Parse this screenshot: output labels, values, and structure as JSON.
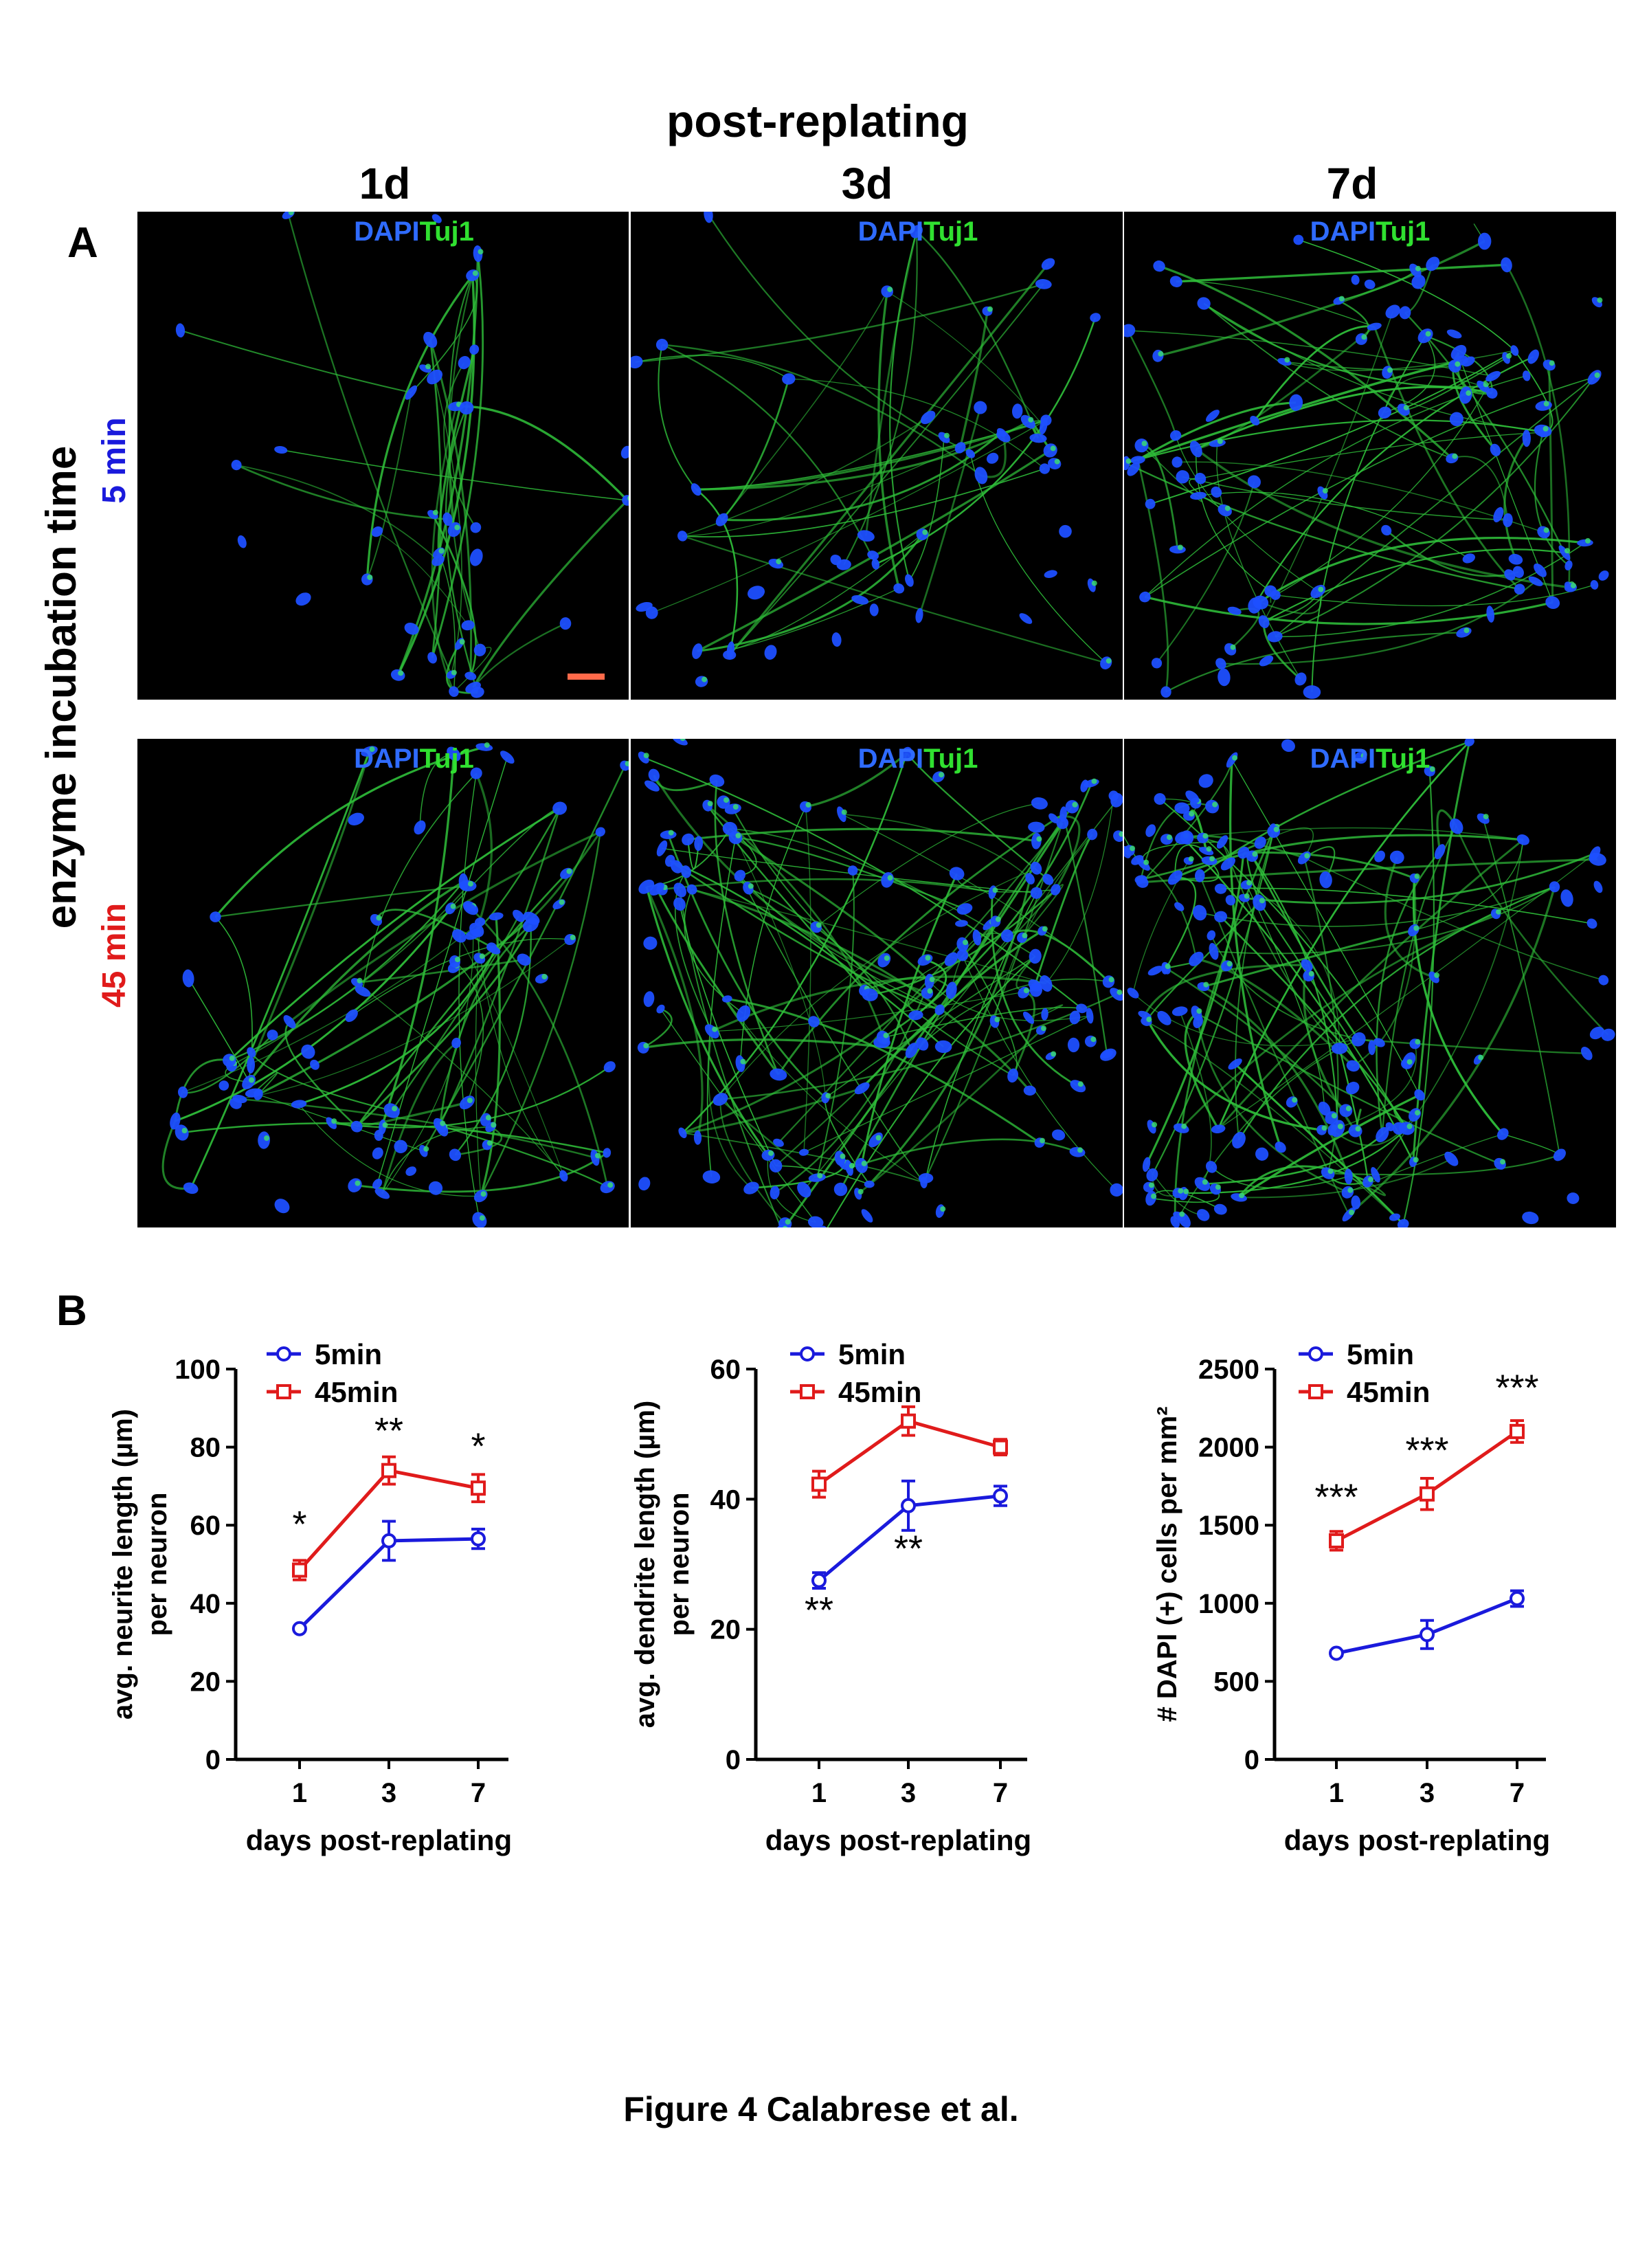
{
  "header": {
    "title": "post-replating",
    "columns": [
      "1d",
      "3d",
      "7d"
    ]
  },
  "panel_labels": {
    "a": "A",
    "b": "B"
  },
  "row_axis_label": "enzyme incubation time",
  "rows": [
    {
      "label": "5 min",
      "color": "#1a1adc"
    },
    {
      "label": "45 min",
      "color": "#e01b1b"
    }
  ],
  "stain": {
    "dapi": "DAPI",
    "tuj1": "Tuj1",
    "dapi_color": "#2f6bff",
    "tuj1_color": "#30e030"
  },
  "scale_bar_color": "#ff6a4a",
  "caption": "Figure 4  Calabrese et al.",
  "chart_data": [
    {
      "type": "line",
      "x": [
        1,
        3,
        7
      ],
      "xtick_labels": [
        "1",
        "3",
        "7"
      ],
      "xlabel": "days post-replating",
      "ylabel_lines": [
        "avg. neurite length (µm)",
        "per neuron"
      ],
      "ylim": [
        0,
        100
      ],
      "yticks": [
        0,
        20,
        40,
        60,
        80,
        100
      ],
      "legend_position": "top-left",
      "series": [
        {
          "name": "5min",
          "color": "#1a1adc",
          "marker": "circle",
          "values": [
            33.5,
            56,
            56.5
          ],
          "errors": [
            0.5,
            5,
            2.5
          ]
        },
        {
          "name": "45min",
          "color": "#e01b1b",
          "marker": "square",
          "values": [
            48.5,
            74,
            69.5
          ],
          "errors": [
            2.5,
            3.5,
            3.5
          ]
        }
      ],
      "annotations": [
        {
          "text": "*",
          "x": 1,
          "y": 57
        },
        {
          "text": "**",
          "x": 3,
          "y": 81
        },
        {
          "text": "*",
          "x": 7,
          "y": 77
        }
      ]
    },
    {
      "type": "line",
      "x": [
        1,
        3,
        7
      ],
      "xtick_labels": [
        "1",
        "3",
        "7"
      ],
      "xlabel": "days post-replating",
      "ylabel_lines": [
        "avg. dendrite length (µm)",
        "per neuron"
      ],
      "ylim": [
        0,
        60
      ],
      "yticks": [
        0,
        20,
        40,
        60
      ],
      "legend_position": "top-left",
      "series": [
        {
          "name": "5min",
          "color": "#1a1adc",
          "marker": "circle",
          "values": [
            27.5,
            39,
            40.5
          ],
          "errors": [
            1.2,
            3.8,
            1.5
          ]
        },
        {
          "name": "45min",
          "color": "#e01b1b",
          "marker": "square",
          "values": [
            42.3,
            52,
            48
          ],
          "errors": [
            2,
            2.2,
            1.2
          ]
        }
      ],
      "annotations": [
        {
          "text": "**",
          "x": 1,
          "y": 21
        },
        {
          "text": "**",
          "x": 3,
          "y": 30.5
        }
      ]
    },
    {
      "type": "line",
      "x": [
        1,
        3,
        7
      ],
      "xtick_labels": [
        "1",
        "3",
        "7"
      ],
      "xlabel": "days post-replating",
      "ylabel_lines": [
        "# DAPI (+) cells per mm²"
      ],
      "ylim": [
        0,
        2500
      ],
      "yticks": [
        0,
        500,
        1000,
        1500,
        2000,
        2500
      ],
      "legend_position": "top-left",
      "series": [
        {
          "name": "5min",
          "color": "#1a1adc",
          "marker": "circle",
          "values": [
            680,
            800,
            1030
          ],
          "errors": [
            15,
            90,
            50
          ]
        },
        {
          "name": "45min",
          "color": "#e01b1b",
          "marker": "square",
          "values": [
            1400,
            1700,
            2100
          ],
          "errors": [
            60,
            100,
            70
          ]
        }
      ],
      "annotations": [
        {
          "text": "***",
          "x": 1,
          "y": 1600
        },
        {
          "text": "***",
          "x": 3,
          "y": 1900
        },
        {
          "text": "***",
          "x": 7,
          "y": 2300
        }
      ]
    }
  ]
}
